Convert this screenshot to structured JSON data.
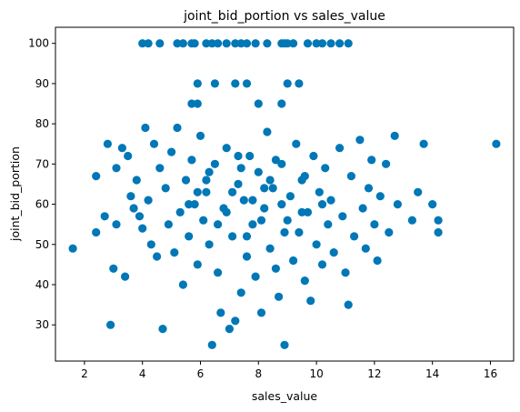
{
  "chart_data": {
    "type": "scatter",
    "title": "joint_bid_portion vs sales_value",
    "xlabel": "sales_value",
    "ylabel": "joint_bid_portion",
    "xlim": [
      1.0,
      16.8
    ],
    "ylim": [
      21.0,
      104.0
    ],
    "xticks": [
      2,
      4,
      6,
      8,
      10,
      12,
      14,
      16
    ],
    "yticks": [
      30,
      40,
      50,
      60,
      70,
      80,
      90,
      100
    ],
    "grid": false,
    "legend": "none",
    "marker_color": "#0077b6",
    "points": [
      [
        1.6,
        49
      ],
      [
        2.4,
        67
      ],
      [
        2.4,
        53
      ],
      [
        2.7,
        57
      ],
      [
        2.8,
        75
      ],
      [
        2.9,
        30
      ],
      [
        3.0,
        44
      ],
      [
        3.1,
        69
      ],
      [
        3.1,
        55
      ],
      [
        3.3,
        74
      ],
      [
        3.4,
        42
      ],
      [
        3.5,
        72
      ],
      [
        3.6,
        62
      ],
      [
        3.7,
        59
      ],
      [
        3.8,
        66
      ],
      [
        3.9,
        57
      ],
      [
        4.0,
        54
      ],
      [
        4.1,
        79
      ],
      [
        4.2,
        61
      ],
      [
        4.3,
        50
      ],
      [
        4.4,
        75
      ],
      [
        4.5,
        47
      ],
      [
        4.6,
        69
      ],
      [
        4.7,
        29
      ],
      [
        4.8,
        64
      ],
      [
        4.9,
        55
      ],
      [
        5.0,
        73
      ],
      [
        5.1,
        48
      ],
      [
        5.2,
        79
      ],
      [
        5.3,
        58
      ],
      [
        5.4,
        40
      ],
      [
        5.5,
        66
      ],
      [
        5.6,
        52
      ],
      [
        5.7,
        71
      ],
      [
        5.8,
        60
      ],
      [
        5.9,
        45
      ],
      [
        6.0,
        77
      ],
      [
        6.1,
        56
      ],
      [
        6.2,
        63
      ],
      [
        6.3,
        50
      ],
      [
        6.4,
        25
      ],
      [
        6.5,
        70
      ],
      [
        6.6,
        43
      ],
      [
        6.7,
        33
      ],
      [
        6.8,
        59
      ],
      [
        6.9,
        74
      ],
      [
        7.0,
        29
      ],
      [
        7.1,
        52
      ],
      [
        7.2,
        31
      ],
      [
        7.3,
        65
      ],
      [
        7.4,
        38
      ],
      [
        7.5,
        61
      ],
      [
        7.6,
        47
      ],
      [
        7.7,
        72
      ],
      [
        7.8,
        55
      ],
      [
        7.9,
        42
      ],
      [
        8.0,
        68
      ],
      [
        8.1,
        33
      ],
      [
        8.2,
        59
      ],
      [
        8.3,
        78
      ],
      [
        8.4,
        49
      ],
      [
        8.5,
        64
      ],
      [
        8.6,
        44
      ],
      [
        8.7,
        37
      ],
      [
        8.8,
        70
      ],
      [
        8.9,
        25
      ],
      [
        9.0,
        56
      ],
      [
        9.1,
        62
      ],
      [
        9.2,
        46
      ],
      [
        9.3,
        75
      ],
      [
        9.4,
        53
      ],
      [
        9.5,
        66
      ],
      [
        9.6,
        41
      ],
      [
        9.7,
        58
      ],
      [
        9.8,
        36
      ],
      [
        9.9,
        72
      ],
      [
        10.0,
        50
      ],
      [
        10.1,
        63
      ],
      [
        10.2,
        45
      ],
      [
        10.3,
        69
      ],
      [
        10.4,
        55
      ],
      [
        10.5,
        61
      ],
      [
        10.6,
        48
      ],
      [
        10.8,
        74
      ],
      [
        10.9,
        57
      ],
      [
        11.0,
        43
      ],
      [
        11.1,
        35
      ],
      [
        11.2,
        67
      ],
      [
        11.3,
        52
      ],
      [
        11.5,
        76
      ],
      [
        11.6,
        59
      ],
      [
        11.7,
        49
      ],
      [
        11.8,
        64
      ],
      [
        11.9,
        71
      ],
      [
        12.0,
        55
      ],
      [
        12.1,
        46
      ],
      [
        12.2,
        62
      ],
      [
        12.4,
        70
      ],
      [
        12.5,
        53
      ],
      [
        12.7,
        77
      ],
      [
        12.8,
        60
      ],
      [
        13.3,
        56
      ],
      [
        13.5,
        63
      ],
      [
        13.7,
        75
      ],
      [
        14.0,
        60
      ],
      [
        14.2,
        56
      ],
      [
        14.2,
        53
      ],
      [
        16.2,
        75
      ],
      [
        6.2,
        66
      ],
      [
        7.1,
        63
      ],
      [
        7.8,
        61
      ],
      [
        8.4,
        66
      ],
      [
        6.9,
        58
      ],
      [
        7.4,
        69
      ],
      [
        8.1,
        56
      ],
      [
        8.8,
        60
      ],
      [
        9.5,
        58
      ],
      [
        5.9,
        63
      ],
      [
        6.6,
        55
      ],
      [
        7.3,
        72
      ],
      [
        8.2,
        64
      ],
      [
        8.9,
        53
      ],
      [
        9.6,
        67
      ],
      [
        10.2,
        60
      ],
      [
        5.6,
        60
      ],
      [
        6.3,
        68
      ],
      [
        7.6,
        52
      ],
      [
        8.6,
        71
      ],
      [
        4.0,
        100
      ],
      [
        4.2,
        100
      ],
      [
        4.6,
        100
      ],
      [
        5.2,
        100
      ],
      [
        5.4,
        100
      ],
      [
        5.7,
        100
      ],
      [
        5.8,
        100
      ],
      [
        6.2,
        100
      ],
      [
        6.4,
        100
      ],
      [
        6.6,
        100
      ],
      [
        6.9,
        100
      ],
      [
        7.2,
        100
      ],
      [
        7.4,
        100
      ],
      [
        7.6,
        100
      ],
      [
        7.9,
        100
      ],
      [
        8.3,
        100
      ],
      [
        8.8,
        100
      ],
      [
        8.9,
        100
      ],
      [
        9.0,
        100
      ],
      [
        9.2,
        100
      ],
      [
        9.7,
        100
      ],
      [
        10.0,
        100
      ],
      [
        10.2,
        100
      ],
      [
        10.5,
        100
      ],
      [
        10.8,
        100
      ],
      [
        11.1,
        100
      ],
      [
        5.9,
        90
      ],
      [
        6.5,
        90
      ],
      [
        7.2,
        90
      ],
      [
        7.6,
        90
      ],
      [
        9.0,
        90
      ],
      [
        9.4,
        90
      ],
      [
        5.7,
        85
      ],
      [
        5.9,
        85
      ],
      [
        8.0,
        85
      ],
      [
        8.8,
        85
      ]
    ]
  }
}
